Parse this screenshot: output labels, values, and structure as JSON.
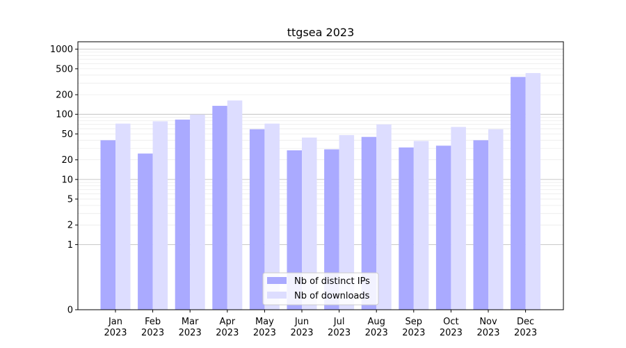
{
  "chart_data": {
    "type": "bar",
    "title": "ttgsea 2023",
    "xlabel": "",
    "ylabel": "",
    "y_scale": "symlog",
    "ylim": [
      0,
      1300
    ],
    "grid": "horizontal",
    "legend_placement": "bottom-center",
    "categories": [
      [
        "Jan",
        "2023"
      ],
      [
        "Feb",
        "2023"
      ],
      [
        "Mar",
        "2023"
      ],
      [
        "Apr",
        "2023"
      ],
      [
        "May",
        "2023"
      ],
      [
        "Jun",
        "2023"
      ],
      [
        "Jul",
        "2023"
      ],
      [
        "Aug",
        "2023"
      ],
      [
        "Sep",
        "2023"
      ],
      [
        "Oct",
        "2023"
      ],
      [
        "Nov",
        "2023"
      ],
      [
        "Dec",
        "2023"
      ]
    ],
    "y_ticks": [
      0,
      1,
      2,
      5,
      10,
      20,
      50,
      100,
      200,
      500,
      1000
    ],
    "y_tick_labels": [
      "0",
      "1",
      "2",
      "5",
      "10",
      "20",
      "50",
      "100",
      "200",
      "500",
      "1000"
    ],
    "series": [
      {
        "name": "Nb of distinct IPs",
        "color": "#aaaaff",
        "values": [
          40,
          25,
          83,
          135,
          59,
          28,
          29,
          45,
          31,
          33,
          40,
          375
        ]
      },
      {
        "name": "Nb of downloads",
        "color": "#ddddff",
        "values": [
          72,
          78,
          99,
          163,
          72,
          44,
          48,
          70,
          39,
          64,
          59,
          430
        ]
      }
    ]
  }
}
